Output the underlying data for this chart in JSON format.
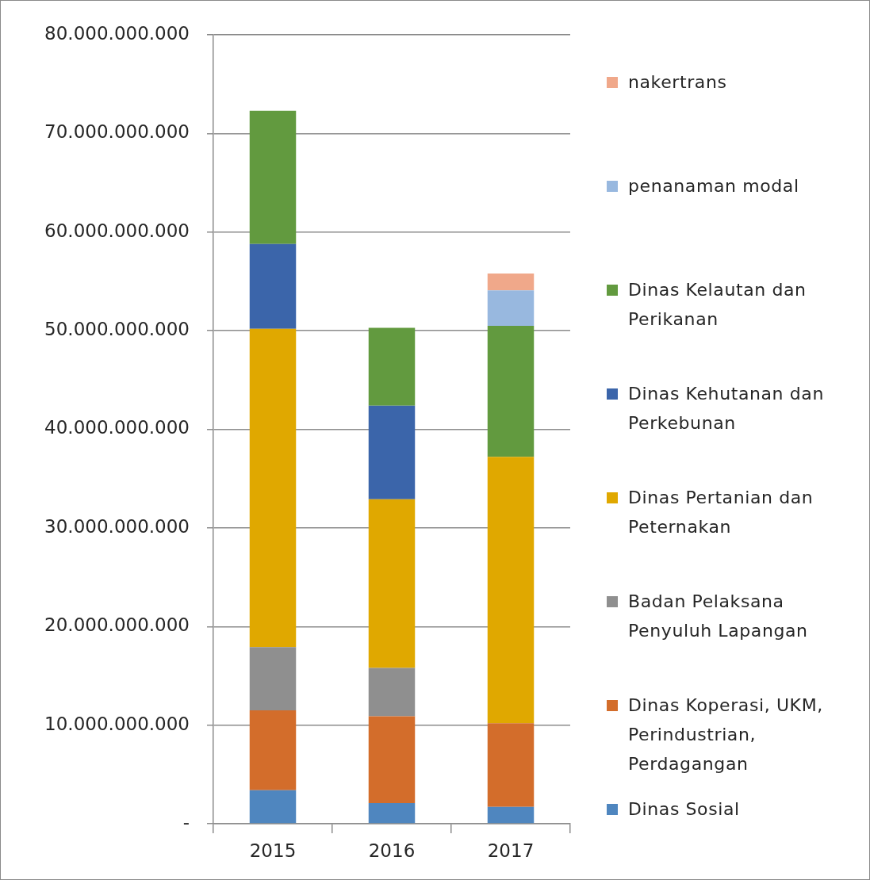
{
  "chart_data": {
    "type": "bar",
    "stacked": true,
    "categories": [
      "2015",
      "2016",
      "2017"
    ],
    "series": [
      {
        "name": "Dinas Sosial",
        "color": "#4f86bf",
        "values": [
          3400000000,
          2100000000,
          1700000000
        ]
      },
      {
        "name": "Dinas Koperasi, UKM, Perindustrian, Perdagangan",
        "color": "#d36d2b",
        "values": [
          8100000000,
          8800000000,
          8500000000
        ]
      },
      {
        "name": "Badan Pelaksana Penyuluh Lapangan",
        "color": "#8f8f8f",
        "values": [
          6400000000,
          4900000000,
          null
        ]
      },
      {
        "name": "Dinas Pertanian dan Peternakan",
        "color": "#e0a800",
        "values": [
          32300000000,
          17100000000,
          27000000000
        ]
      },
      {
        "name": "Dinas Kehutanan dan Perkebunan",
        "color": "#3b65aa",
        "values": [
          8600000000,
          9500000000,
          null
        ]
      },
      {
        "name": "Dinas Kelautan dan Perikanan",
        "color": "#629a3f",
        "values": [
          13500000000,
          7900000000,
          13300000000
        ]
      },
      {
        "name": "penanaman modal",
        "color": "#98b8df",
        "values": [
          null,
          null,
          3600000000
        ]
      },
      {
        "name": "nakertrans",
        "color": "#f0a88a",
        "values": [
          null,
          null,
          1700000000
        ]
      }
    ],
    "ylim": [
      0,
      80000000000
    ],
    "yticks": [
      {
        "value": 0,
        "label": "-"
      },
      {
        "value": 10000000000,
        "label": "10.000.000.000"
      },
      {
        "value": 20000000000,
        "label": "20.000.000.000"
      },
      {
        "value": 30000000000,
        "label": "30.000.000.000"
      },
      {
        "value": 40000000000,
        "label": "40.000.000.000"
      },
      {
        "value": 50000000000,
        "label": "50.000.000.000"
      },
      {
        "value": 60000000000,
        "label": "60.000.000.000"
      },
      {
        "value": 70000000000,
        "label": "70.000.000.000"
      },
      {
        "value": 80000000000,
        "label": "80.000.000.000"
      }
    ],
    "grid": "y",
    "legend": "right"
  }
}
